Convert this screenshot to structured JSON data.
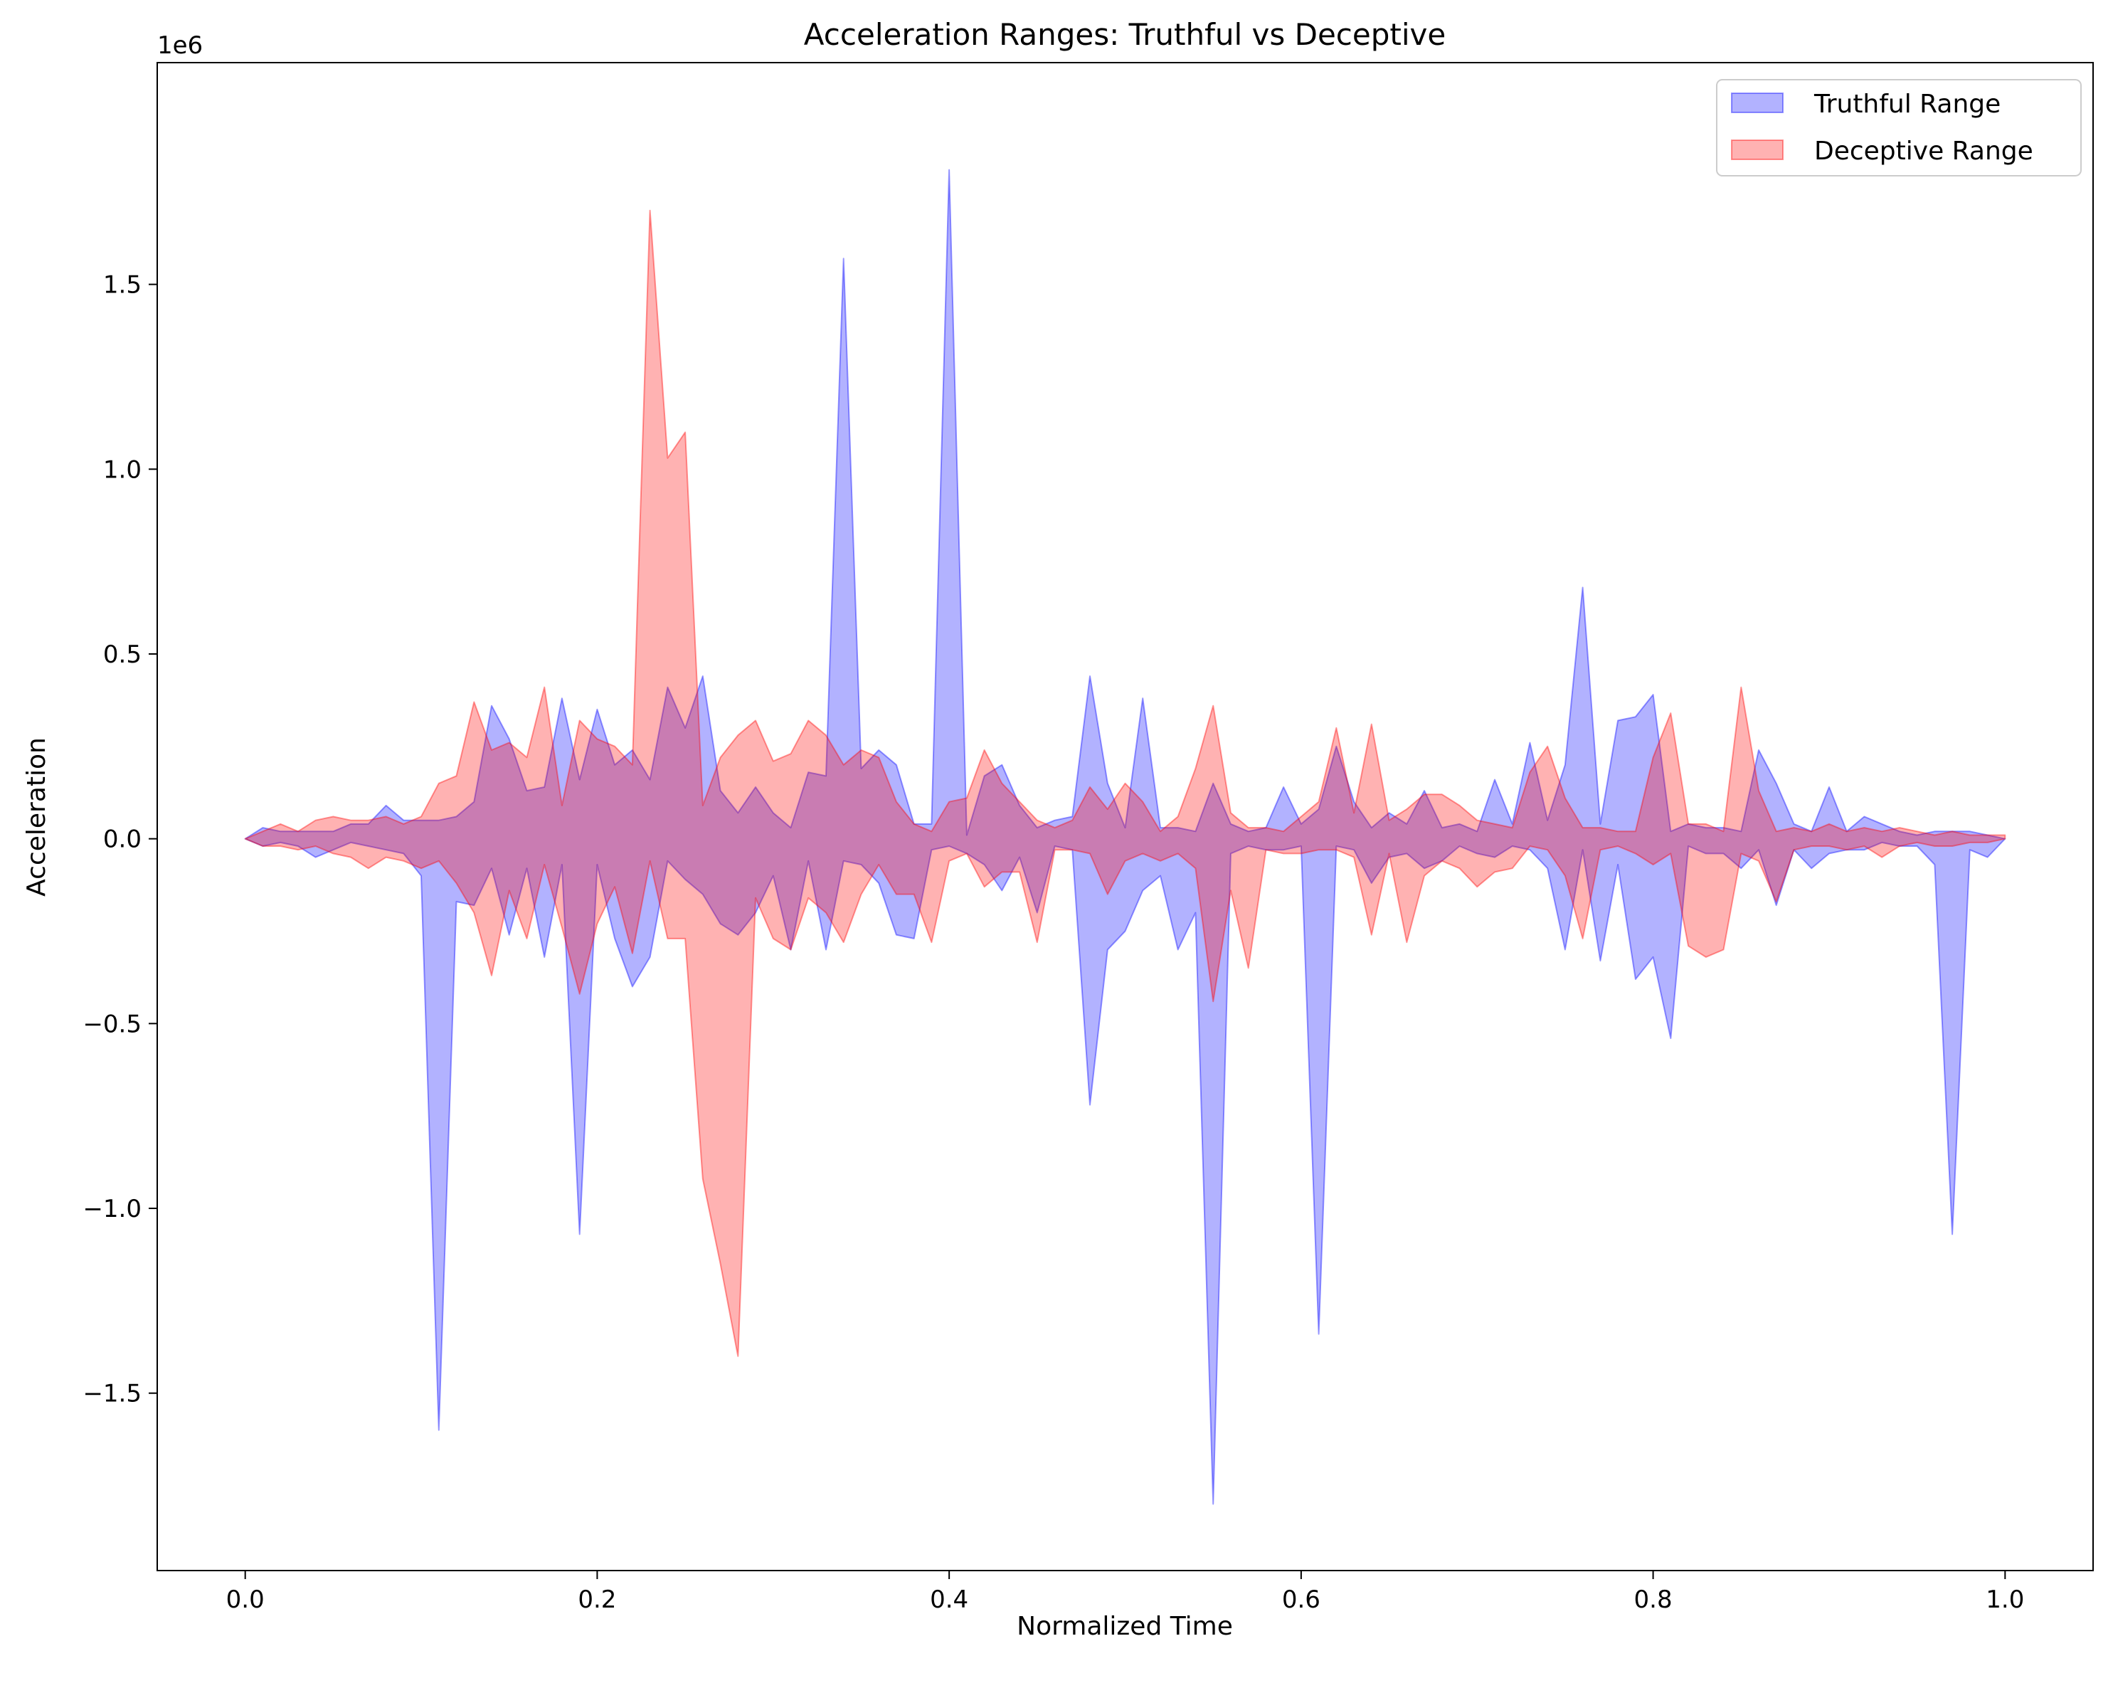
{
  "chart_data": {
    "type": "area",
    "title": "Acceleration Ranges: Truthful vs Deceptive",
    "xlabel": "Normalized Time",
    "ylabel": "Acceleration",
    "y_offset_label": "1e6",
    "xlim": [
      -0.05,
      1.05
    ],
    "ylim": [
      -1.98,
      2.1
    ],
    "x_ticks": [
      0.0,
      0.2,
      0.4,
      0.6,
      0.8,
      1.0
    ],
    "x_tick_labels": [
      "0.0",
      "0.2",
      "0.4",
      "0.6",
      "0.8",
      "1.0"
    ],
    "y_ticks": [
      -1.5,
      -1.0,
      -0.5,
      0.0,
      0.5,
      1.0,
      1.5
    ],
    "y_tick_labels": [
      "−1.5",
      "−1.0",
      "−0.5",
      "0.0",
      "0.5",
      "1.0",
      "1.5"
    ],
    "grid": false,
    "legend_position": "top-right",
    "series": [
      {
        "name": "Truthful Range",
        "color": "#0000ff",
        "alpha": 0.3,
        "x": [
          0.0,
          0.01,
          0.02,
          0.03,
          0.04,
          0.05,
          0.06,
          0.07,
          0.08,
          0.09,
          0.1,
          0.11,
          0.12,
          0.13,
          0.14,
          0.15,
          0.16,
          0.17,
          0.18,
          0.19,
          0.2,
          0.21,
          0.22,
          0.23,
          0.24,
          0.25,
          0.26,
          0.27,
          0.28,
          0.29,
          0.3,
          0.31,
          0.32,
          0.33,
          0.34,
          0.35,
          0.36,
          0.37,
          0.38,
          0.39,
          0.4,
          0.41,
          0.42,
          0.43,
          0.44,
          0.45,
          0.46,
          0.47,
          0.48,
          0.49,
          0.5,
          0.51,
          0.52,
          0.53,
          0.54,
          0.55,
          0.56,
          0.57,
          0.58,
          0.59,
          0.6,
          0.61,
          0.62,
          0.63,
          0.64,
          0.65,
          0.66,
          0.67,
          0.68,
          0.69,
          0.7,
          0.71,
          0.72,
          0.73,
          0.74,
          0.75,
          0.76,
          0.77,
          0.78,
          0.79,
          0.8,
          0.81,
          0.82,
          0.83,
          0.84,
          0.85,
          0.86,
          0.87,
          0.88,
          0.89,
          0.9,
          0.91,
          0.92,
          0.93,
          0.94,
          0.95,
          0.96,
          0.97,
          0.98,
          0.99,
          1.0
        ],
        "upper": [
          0.0,
          0.03,
          0.02,
          0.02,
          0.02,
          0.02,
          0.04,
          0.04,
          0.09,
          0.05,
          0.05,
          0.05,
          0.06,
          0.1,
          0.36,
          0.27,
          0.13,
          0.14,
          0.38,
          0.16,
          0.35,
          0.2,
          0.24,
          0.16,
          0.41,
          0.3,
          0.44,
          0.13,
          0.07,
          0.14,
          0.07,
          0.03,
          0.18,
          0.17,
          1.57,
          0.19,
          0.24,
          0.2,
          0.04,
          0.04,
          1.81,
          0.01,
          0.17,
          0.2,
          0.09,
          0.03,
          0.05,
          0.06,
          0.44,
          0.15,
          0.03,
          0.38,
          0.03,
          0.03,
          0.02,
          0.15,
          0.04,
          0.02,
          0.03,
          0.14,
          0.04,
          0.08,
          0.25,
          0.1,
          0.03,
          0.07,
          0.04,
          0.13,
          0.03,
          0.04,
          0.02,
          0.16,
          0.04,
          0.26,
          0.05,
          0.2,
          0.68,
          0.04,
          0.32,
          0.33,
          0.39,
          0.02,
          0.04,
          0.03,
          0.03,
          0.02,
          0.24,
          0.15,
          0.04,
          0.02,
          0.14,
          0.02,
          0.06,
          0.04,
          0.02,
          0.01,
          0.02,
          0.02,
          0.02,
          0.01,
          0.0
        ],
        "lower": [
          0.0,
          -0.02,
          -0.01,
          -0.02,
          -0.05,
          -0.03,
          -0.01,
          -0.02,
          -0.03,
          -0.04,
          -0.1,
          -1.6,
          -0.17,
          -0.18,
          -0.08,
          -0.26,
          -0.08,
          -0.32,
          -0.07,
          -1.07,
          -0.07,
          -0.27,
          -0.4,
          -0.32,
          -0.06,
          -0.11,
          -0.15,
          -0.23,
          -0.26,
          -0.2,
          -0.1,
          -0.3,
          -0.06,
          -0.3,
          -0.06,
          -0.07,
          -0.12,
          -0.26,
          -0.27,
          -0.03,
          -0.02,
          -0.04,
          -0.07,
          -0.14,
          -0.05,
          -0.2,
          -0.02,
          -0.03,
          -0.72,
          -0.3,
          -0.25,
          -0.14,
          -0.1,
          -0.3,
          -0.2,
          -1.8,
          -0.04,
          -0.02,
          -0.03,
          -0.03,
          -0.02,
          -1.34,
          -0.02,
          -0.03,
          -0.12,
          -0.05,
          -0.04,
          -0.08,
          -0.06,
          -0.02,
          -0.04,
          -0.05,
          -0.02,
          -0.03,
          -0.08,
          -0.3,
          -0.03,
          -0.33,
          -0.07,
          -0.38,
          -0.32,
          -0.54,
          -0.02,
          -0.04,
          -0.04,
          -0.08,
          -0.03,
          -0.18,
          -0.03,
          -0.08,
          -0.04,
          -0.03,
          -0.03,
          -0.01,
          -0.02,
          -0.02,
          -0.07,
          -1.07,
          -0.03,
          -0.05,
          0.0
        ]
      },
      {
        "name": "Deceptive Range",
        "color": "#ff0000",
        "alpha": 0.3,
        "x": [
          0.0,
          0.01,
          0.02,
          0.03,
          0.04,
          0.05,
          0.06,
          0.07,
          0.08,
          0.09,
          0.1,
          0.11,
          0.12,
          0.13,
          0.14,
          0.15,
          0.16,
          0.17,
          0.18,
          0.19,
          0.2,
          0.21,
          0.22,
          0.23,
          0.24,
          0.25,
          0.26,
          0.27,
          0.28,
          0.29,
          0.3,
          0.31,
          0.32,
          0.33,
          0.34,
          0.35,
          0.36,
          0.37,
          0.38,
          0.39,
          0.4,
          0.41,
          0.42,
          0.43,
          0.44,
          0.45,
          0.46,
          0.47,
          0.48,
          0.49,
          0.5,
          0.51,
          0.52,
          0.53,
          0.54,
          0.55,
          0.56,
          0.57,
          0.58,
          0.59,
          0.6,
          0.61,
          0.62,
          0.63,
          0.64,
          0.65,
          0.66,
          0.67,
          0.68,
          0.69,
          0.7,
          0.71,
          0.72,
          0.73,
          0.74,
          0.75,
          0.76,
          0.77,
          0.78,
          0.79,
          0.8,
          0.81,
          0.82,
          0.83,
          0.84,
          0.85,
          0.86,
          0.87,
          0.88,
          0.89,
          0.9,
          0.91,
          0.92,
          0.93,
          0.94,
          0.95,
          0.96,
          0.97,
          0.98,
          0.99,
          1.0
        ],
        "upper": [
          0.0,
          0.02,
          0.04,
          0.02,
          0.05,
          0.06,
          0.05,
          0.05,
          0.06,
          0.04,
          0.06,
          0.15,
          0.17,
          0.37,
          0.24,
          0.26,
          0.22,
          0.41,
          0.09,
          0.32,
          0.27,
          0.25,
          0.2,
          1.7,
          1.03,
          1.1,
          0.09,
          0.22,
          0.28,
          0.32,
          0.21,
          0.23,
          0.32,
          0.28,
          0.2,
          0.24,
          0.22,
          0.1,
          0.04,
          0.02,
          0.1,
          0.11,
          0.24,
          0.15,
          0.1,
          0.05,
          0.03,
          0.05,
          0.14,
          0.08,
          0.15,
          0.1,
          0.02,
          0.06,
          0.19,
          0.36,
          0.07,
          0.03,
          0.03,
          0.02,
          0.06,
          0.1,
          0.3,
          0.07,
          0.31,
          0.05,
          0.08,
          0.12,
          0.12,
          0.09,
          0.05,
          0.04,
          0.03,
          0.18,
          0.25,
          0.11,
          0.03,
          0.03,
          0.02,
          0.02,
          0.22,
          0.34,
          0.04,
          0.04,
          0.02,
          0.41,
          0.13,
          0.02,
          0.03,
          0.02,
          0.04,
          0.02,
          0.03,
          0.02,
          0.03,
          0.02,
          0.01,
          0.02,
          0.01,
          0.01,
          0.01
        ],
        "lower": [
          0.0,
          -0.02,
          -0.02,
          -0.03,
          -0.02,
          -0.04,
          -0.05,
          -0.08,
          -0.05,
          -0.06,
          -0.08,
          -0.06,
          -0.12,
          -0.2,
          -0.37,
          -0.14,
          -0.27,
          -0.07,
          -0.24,
          -0.42,
          -0.23,
          -0.13,
          -0.31,
          -0.06,
          -0.27,
          -0.27,
          -0.92,
          -1.15,
          -1.4,
          -0.16,
          -0.27,
          -0.3,
          -0.16,
          -0.2,
          -0.28,
          -0.15,
          -0.07,
          -0.15,
          -0.15,
          -0.28,
          -0.06,
          -0.04,
          -0.13,
          -0.09,
          -0.09,
          -0.28,
          -0.03,
          -0.03,
          -0.04,
          -0.15,
          -0.06,
          -0.04,
          -0.06,
          -0.04,
          -0.08,
          -0.44,
          -0.14,
          -0.35,
          -0.03,
          -0.04,
          -0.04,
          -0.03,
          -0.03,
          -0.05,
          -0.26,
          -0.04,
          -0.28,
          -0.1,
          -0.06,
          -0.08,
          -0.13,
          -0.09,
          -0.08,
          -0.02,
          -0.03,
          -0.1,
          -0.27,
          -0.03,
          -0.02,
          -0.04,
          -0.07,
          -0.04,
          -0.29,
          -0.32,
          -0.3,
          -0.04,
          -0.06,
          -0.17,
          -0.03,
          -0.02,
          -0.02,
          -0.03,
          -0.02,
          -0.05,
          -0.02,
          -0.01,
          -0.02,
          -0.02,
          -0.01,
          -0.01,
          0.0
        ]
      }
    ]
  }
}
